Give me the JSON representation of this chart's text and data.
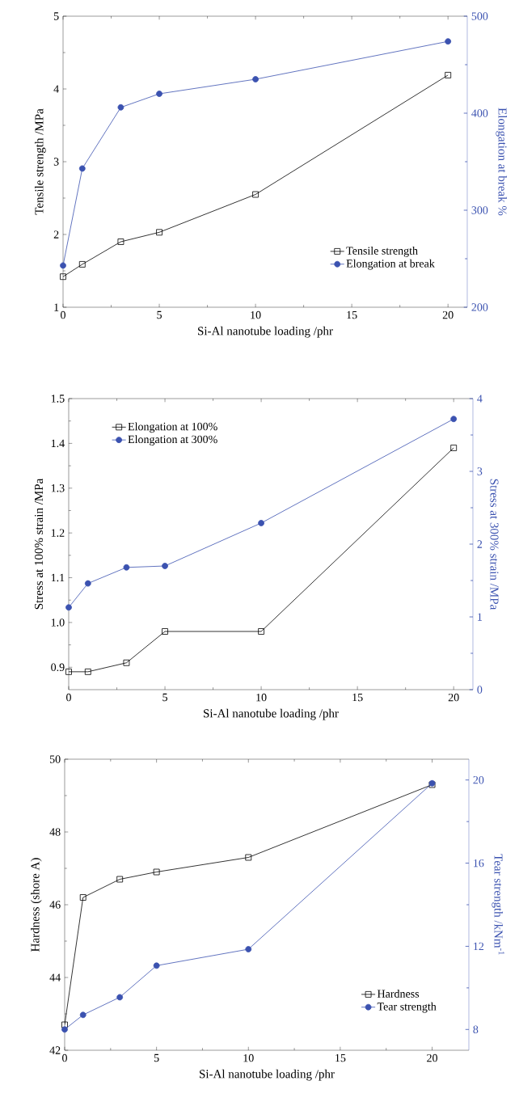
{
  "chart_data": [
    {
      "type": "line",
      "x": [
        0,
        1,
        3,
        5,
        10,
        20
      ],
      "xlabel": "Si-Al nanotube loading  /phr",
      "ylabel": "Tensile strength /MPa",
      "y2label": "Elongation at break %",
      "xlim": [
        0,
        21
      ],
      "xticks": [
        0,
        5,
        10,
        15,
        20
      ],
      "ylim": [
        1,
        5
      ],
      "yticks": [
        1,
        2,
        3,
        4,
        5
      ],
      "y2lim": [
        200,
        500
      ],
      "y2ticks": [
        200,
        300,
        400,
        500
      ],
      "legend": "bottom right",
      "series": [
        {
          "name": "Tensile strength",
          "color": "#000000",
          "marker": "square",
          "values": [
            1.42,
            1.59,
            1.9,
            2.03,
            2.55,
            4.19
          ]
        },
        {
          "name": "Elongation at break",
          "color": "#3b52b0",
          "marker": "circle",
          "axis": "y2",
          "values": [
            243,
            343,
            406,
            420,
            435,
            474
          ]
        }
      ]
    },
    {
      "type": "line",
      "x": [
        0,
        1,
        3,
        5,
        10,
        20
      ],
      "xlabel": "Si-Al nanotube loading  /phr",
      "ylabel": "Stress at 100% strain /MPa",
      "y2label": "Stress at 300% strain /MPa",
      "xlim": [
        0,
        21
      ],
      "xticks": [
        0,
        5,
        10,
        15,
        20
      ],
      "ylim": [
        0.85,
        1.5
      ],
      "yticks": [
        0.9,
        {
          "value": 1.0,
          "label": "1.0"
        },
        1.1,
        1.2,
        1.3,
        1.4,
        1.5
      ],
      "y2lim": [
        0,
        4
      ],
      "y2ticks": [
        0,
        1,
        2,
        3,
        4
      ],
      "legend": "top left",
      "series": [
        {
          "name": "Elongation at 100%",
          "color": "#000000",
          "marker": "square",
          "values": [
            0.89,
            0.89,
            0.91,
            0.98,
            0.98,
            1.39
          ]
        },
        {
          "name": "Elongation at 300%",
          "color": "#3b52b0",
          "marker": "circle",
          "axis": "y2",
          "values": [
            1.13,
            1.46,
            1.68,
            1.7,
            2.29,
            3.72
          ]
        }
      ]
    },
    {
      "type": "line",
      "x": [
        0,
        1,
        3,
        5,
        10,
        20
      ],
      "xlabel": "Si-Al nanotube loading  /phr",
      "ylabel": "Hardness (shore A)",
      "y2label": "Tear strength /kNm$^{-1}$",
      "xlim": [
        0,
        22
      ],
      "xticks": [
        0,
        5,
        10,
        15,
        20
      ],
      "ylim": [
        42,
        50
      ],
      "yticks": [
        42,
        44,
        46,
        48,
        50
      ],
      "y2lim": [
        7,
        21
      ],
      "y2ticks": [
        8,
        12,
        16,
        20
      ],
      "legend": "bottom right",
      "series": [
        {
          "name": "Hardness",
          "color": "#000000",
          "marker": "square",
          "values": [
            42.7,
            46.2,
            46.7,
            46.9,
            47.3,
            49.3
          ]
        },
        {
          "name": "Tear strength",
          "color": "#3b52b0",
          "marker": "circle",
          "axis": "y2",
          "values": [
            8.0,
            8.7,
            9.55,
            11.07,
            11.86,
            19.84
          ]
        }
      ]
    }
  ]
}
